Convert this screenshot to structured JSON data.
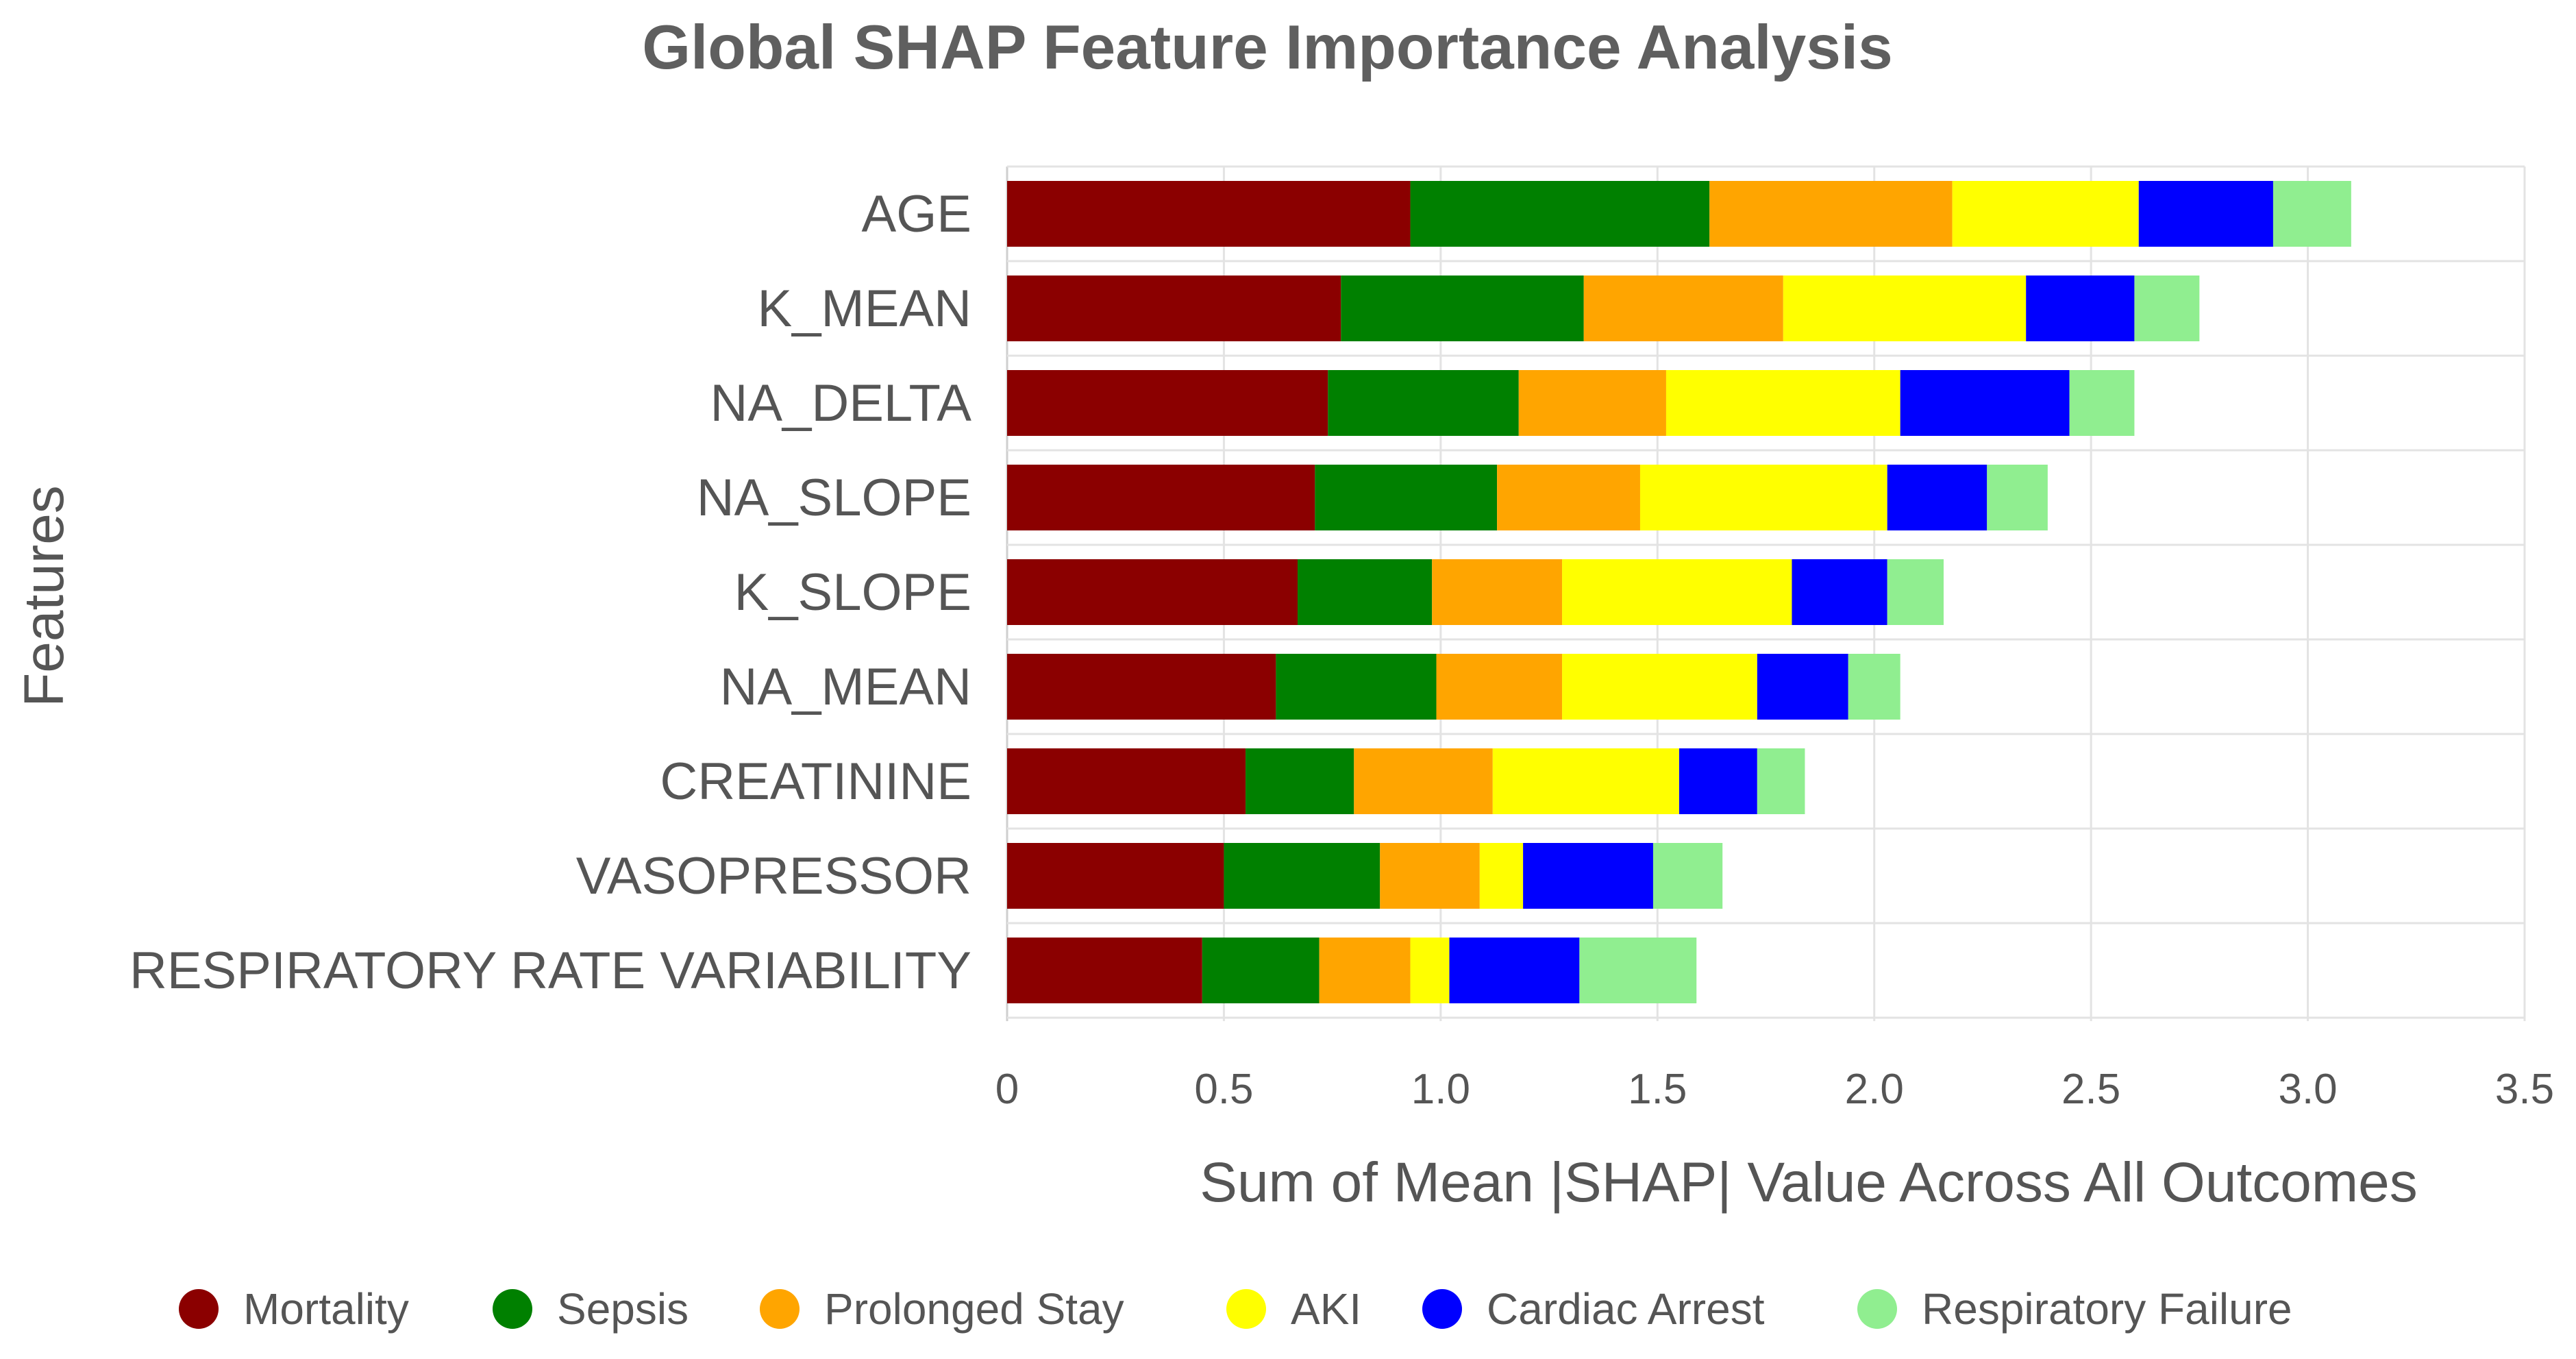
{
  "chart_data": {
    "type": "bar",
    "orientation": "horizontal",
    "stacked": true,
    "title": "Global SHAP Feature Importance Analysis",
    "xlabel": "Sum of Mean |SHAP| Value Across All Outcomes",
    "ylabel": "Features",
    "xlim": [
      0,
      3.5
    ],
    "xticks": [
      "0",
      "0.5",
      "1.0",
      "1.5",
      "2.0",
      "2.5",
      "3.0",
      "3.5"
    ],
    "grid": true,
    "legend_position": "bottom",
    "categories": [
      "AGE",
      "K_MEAN",
      "NA_DELTA",
      "NA_SLOPE",
      "K_SLOPE",
      "NA_MEAN",
      "CREATININE",
      "VASOPRESSOR",
      "RESPIRATORY RATE VARIABILITY"
    ],
    "series": [
      {
        "name": "Mortality",
        "color": "#8b0000",
        "values": [
          0.93,
          0.77,
          0.74,
          0.71,
          0.67,
          0.62,
          0.55,
          0.5,
          0.45
        ]
      },
      {
        "name": "Sepsis",
        "color": "#008000",
        "values": [
          0.69,
          0.56,
          0.44,
          0.42,
          0.31,
          0.37,
          0.25,
          0.36,
          0.27
        ]
      },
      {
        "name": "Prolonged Stay",
        "color": "#ffa500",
        "values": [
          0.56,
          0.46,
          0.34,
          0.33,
          0.3,
          0.29,
          0.32,
          0.23,
          0.21
        ]
      },
      {
        "name": "AKI",
        "color": "#ffff00",
        "values": [
          0.43,
          0.56,
          0.54,
          0.57,
          0.53,
          0.45,
          0.43,
          0.1,
          0.09
        ]
      },
      {
        "name": "Cardiac Arrest",
        "color": "#0000ff",
        "values": [
          0.31,
          0.25,
          0.39,
          0.23,
          0.22,
          0.21,
          0.18,
          0.3,
          0.3
        ]
      },
      {
        "name": "Respiratory Failure",
        "color": "#90ee90",
        "values": [
          0.18,
          0.15,
          0.15,
          0.14,
          0.13,
          0.12,
          0.11,
          0.16,
          0.27
        ]
      }
    ]
  }
}
